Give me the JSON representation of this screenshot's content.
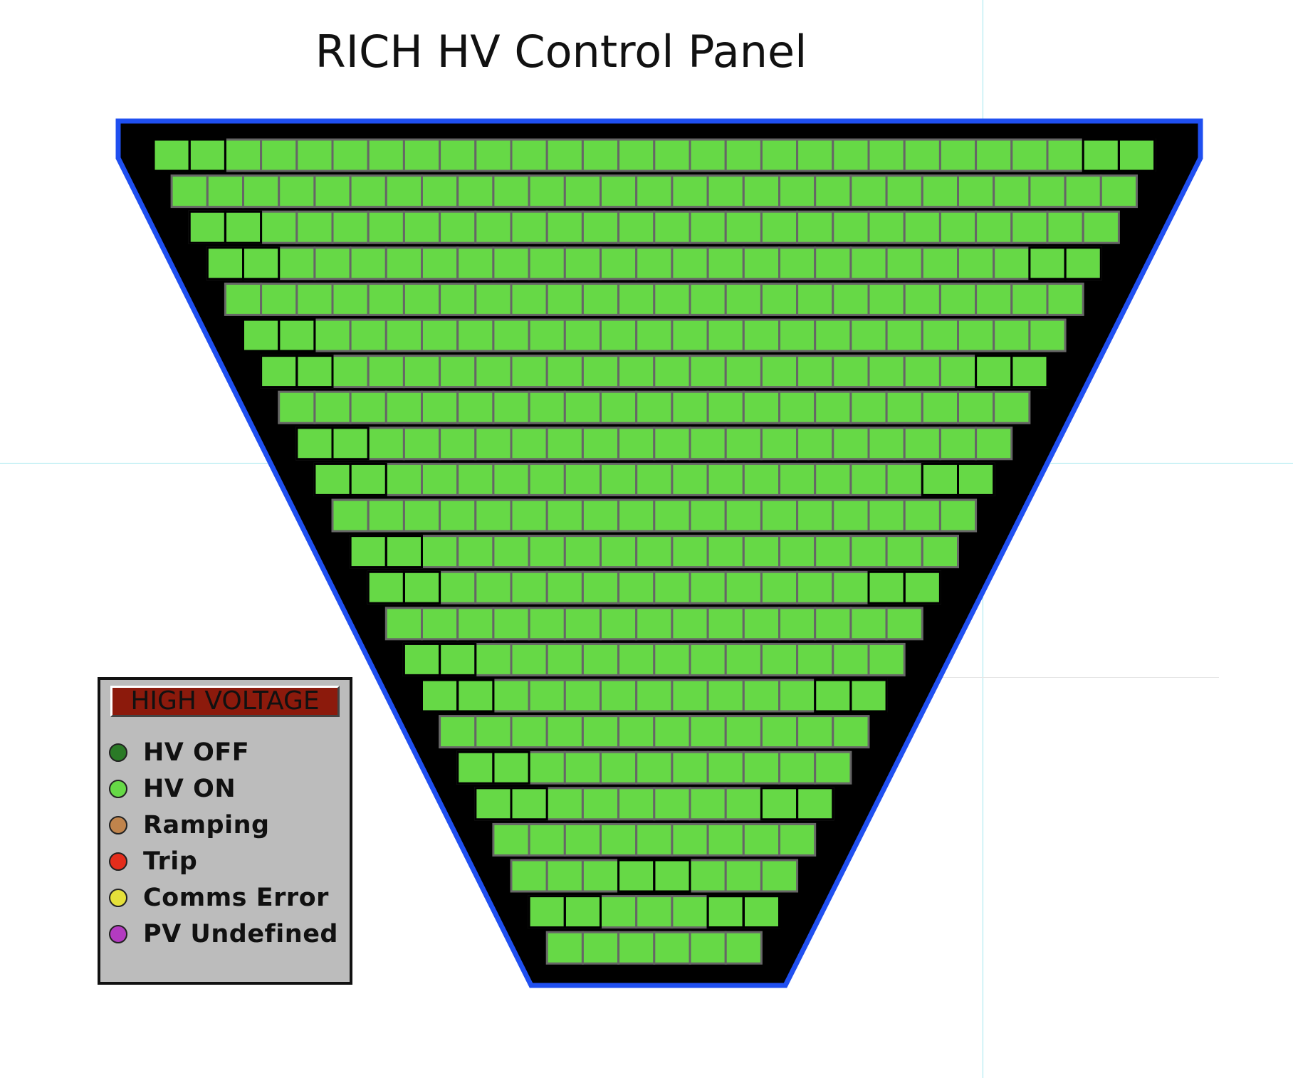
{
  "title": "RICH HV Control Panel",
  "colors": {
    "frame_border": "#1f4ff0",
    "frame_fill": "#000000",
    "pmt_on": "#66d946",
    "grid_line": "#666666",
    "group_outline": "#000000"
  },
  "legend": {
    "header": "HIGH VOLTAGE",
    "items": [
      {
        "label": "HV OFF",
        "color": "#2a7a26",
        "icon": "status-dot"
      },
      {
        "label": "HV ON",
        "color": "#66d946",
        "icon": "status-dot"
      },
      {
        "label": "Ramping",
        "color": "#c0844c",
        "icon": "status-dot"
      },
      {
        "label": "Trip",
        "color": "#e32d1c",
        "icon": "status-dot"
      },
      {
        "label": "Comms Error",
        "color": "#e5e03a",
        "icon": "status-dot"
      },
      {
        "label": "PV Undefined",
        "color": "#b33bc0",
        "icon": "status-dot"
      }
    ]
  },
  "detector": {
    "rows": [
      {
        "modules": 28,
        "status": "HV ON",
        "outlined_left": 2,
        "outlined_right": 2
      },
      {
        "modules": 27,
        "status": "HV ON",
        "outlined_left": 0,
        "outlined_right": 0
      },
      {
        "modules": 26,
        "status": "HV ON",
        "outlined_left": 2,
        "outlined_right": 0
      },
      {
        "modules": 25,
        "status": "HV ON",
        "outlined_left": 2,
        "outlined_right": 2
      },
      {
        "modules": 24,
        "status": "HV ON",
        "outlined_left": 0,
        "outlined_right": 0
      },
      {
        "modules": 23,
        "status": "HV ON",
        "outlined_left": 2,
        "outlined_right": 0
      },
      {
        "modules": 22,
        "status": "HV ON",
        "outlined_left": 2,
        "outlined_right": 2
      },
      {
        "modules": 21,
        "status": "HV ON",
        "outlined_left": 0,
        "outlined_right": 0
      },
      {
        "modules": 20,
        "status": "HV ON",
        "outlined_left": 2,
        "outlined_right": 0
      },
      {
        "modules": 19,
        "status": "HV ON",
        "outlined_left": 2,
        "outlined_right": 2
      },
      {
        "modules": 18,
        "status": "HV ON",
        "outlined_left": 0,
        "outlined_right": 0
      },
      {
        "modules": 17,
        "status": "HV ON",
        "outlined_left": 2,
        "outlined_right": 0
      },
      {
        "modules": 16,
        "status": "HV ON",
        "outlined_left": 2,
        "outlined_right": 2
      },
      {
        "modules": 15,
        "status": "HV ON",
        "outlined_left": 0,
        "outlined_right": 0
      },
      {
        "modules": 14,
        "status": "HV ON",
        "outlined_left": 2,
        "outlined_right": 0
      },
      {
        "modules": 13,
        "status": "HV ON",
        "outlined_left": 2,
        "outlined_right": 2
      },
      {
        "modules": 12,
        "status": "HV ON",
        "outlined_left": 0,
        "outlined_right": 0
      },
      {
        "modules": 11,
        "status": "HV ON",
        "outlined_left": 2,
        "outlined_right": 0
      },
      {
        "modules": 10,
        "status": "HV ON",
        "outlined_left": 2,
        "outlined_right": 2
      },
      {
        "modules": 9,
        "status": "HV ON",
        "outlined_left": 0,
        "outlined_right": 0
      },
      {
        "modules": 8,
        "status": "HV ON",
        "outlined_left": 0,
        "outlined_right": 0,
        "outlined_center": 2
      },
      {
        "modules": 7,
        "status": "HV ON",
        "outlined_left": 2,
        "outlined_right": 2
      },
      {
        "modules": 6,
        "status": "HV ON",
        "outlined_left": 0,
        "outlined_right": 0
      }
    ]
  }
}
